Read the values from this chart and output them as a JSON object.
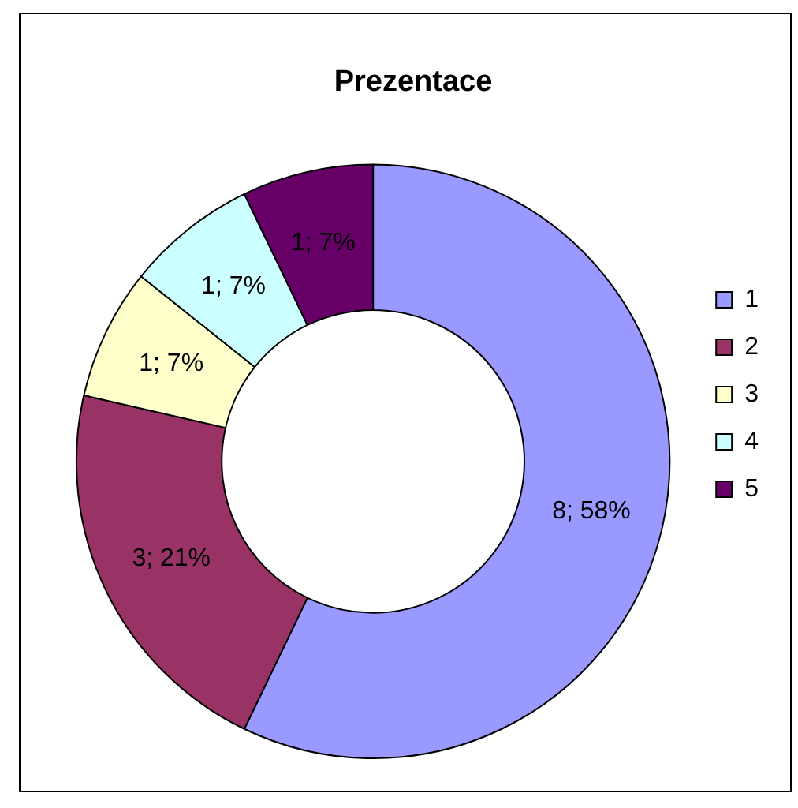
{
  "chart_data": {
    "type": "donut",
    "title": "Prezentace",
    "categories": [
      "1",
      "2",
      "3",
      "4",
      "5"
    ],
    "values": [
      8,
      3,
      1,
      1,
      1
    ],
    "colors": [
      "#9999ff",
      "#993366",
      "#ffffcc",
      "#ccffff",
      "#660066"
    ],
    "value_labels": [
      "8; 58%",
      "3; 21%",
      "1; 7%",
      "1; 7%",
      "1; 7%"
    ],
    "legend": "right"
  }
}
